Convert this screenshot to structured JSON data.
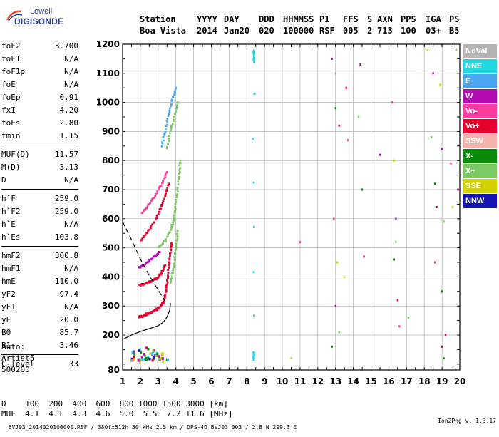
{
  "logo": {
    "line1": "Lowell",
    "line2": "DIGISONDE"
  },
  "header": {
    "labels": [
      "Station",
      "YYYY",
      "DAY",
      "DDD",
      "HHMMSS",
      "P1",
      "FFS",
      "S",
      "AXN",
      "PPS",
      "IGA",
      "PS"
    ],
    "values": [
      "Boa Vista",
      "2014",
      "Jan20",
      "020",
      "100000",
      "RSF",
      "005",
      "2",
      "713",
      "100",
      "03+",
      "B5"
    ]
  },
  "params_groups": [
    [
      {
        "label": "foF2",
        "value": "3.700"
      },
      {
        "label": "foF1",
        "value": "N/A"
      },
      {
        "label": "foF1p",
        "value": "N/A"
      },
      {
        "label": "foE",
        "value": "N/A"
      },
      {
        "label": "foEp",
        "value": "0.91"
      },
      {
        "label": "fxI",
        "value": "4.20"
      },
      {
        "label": "foEs",
        "value": "2.80"
      },
      {
        "label": "fmin",
        "value": "1.15"
      }
    ],
    [
      {
        "label": "MUF(D)",
        "value": "11.57"
      },
      {
        "label": "M(D)",
        "value": "3.13"
      },
      {
        "label": "D",
        "value": "N/A"
      }
    ],
    [
      {
        "label": "h`F",
        "value": "259.0"
      },
      {
        "label": "h`F2",
        "value": "259.0"
      },
      {
        "label": "h`E",
        "value": "N/A"
      },
      {
        "label": "h`Es",
        "value": "103.8"
      }
    ],
    [
      {
        "label": "hmF2",
        "value": "300.8"
      },
      {
        "label": "hmF1",
        "value": "N/A"
      },
      {
        "label": "hmE",
        "value": "110.0"
      },
      {
        "label": "yF2",
        "value": "97.4"
      },
      {
        "label": "yF1",
        "value": "N/A"
      },
      {
        "label": "yE",
        "value": "20.0"
      },
      {
        "label": "B0",
        "value": "85.7"
      },
      {
        "label": "B1",
        "value": "3.46"
      }
    ],
    [
      {
        "label": "C-level",
        "value": "33"
      }
    ]
  ],
  "auto": {
    "line1": "Auto:",
    "line2": "Artist5",
    "line3": "500200"
  },
  "dmuf": {
    "d_label": "D",
    "d_values": [
      "100",
      "200",
      "400",
      "600",
      "800",
      "1000",
      "1500",
      "3000"
    ],
    "d_unit": "[km]",
    "muf_label": "MUF",
    "muf_values": [
      "4.1",
      "4.1",
      "4.3",
      "4.6",
      "5.0",
      "5.5",
      "7.2",
      "11.6"
    ],
    "muf_unit": "[MHz]"
  },
  "footer": {
    "left": "BVJ03_2014020100000.RSF / 380fx512h 50 kHz 2.5 km / DPS-4D BVJ03 003 / 2.8 N 299.3 E",
    "right": "Ion2Png v. 1.3.17"
  },
  "legend": [
    {
      "label": "NoVal",
      "color": "#b4b4b4"
    },
    {
      "label": "NNE",
      "color": "#22d6e0"
    },
    {
      "label": "E",
      "color": "#4aa6f0"
    },
    {
      "label": "W",
      "color": "#b40ab4"
    },
    {
      "label": "Vo-",
      "color": "#ff3ca0"
    },
    {
      "label": "Vo+",
      "color": "#e6002d"
    },
    {
      "label": "SSW",
      "color": "#f5b4aa"
    },
    {
      "label": "X-",
      "color": "#0a8c0a"
    },
    {
      "label": "X+",
      "color": "#7cc864"
    },
    {
      "label": "SSE",
      "color": "#d2d200"
    },
    {
      "label": "NNW",
      "color": "#1414b4"
    }
  ],
  "chart_data": {
    "type": "scatter",
    "xlim": [
      1,
      20
    ],
    "ylim": [
      80,
      1200
    ],
    "x_ticks": [
      1,
      2,
      3,
      4,
      5,
      6,
      7,
      8,
      9,
      10,
      11,
      12,
      13,
      14,
      15,
      16,
      17,
      18,
      19,
      20
    ],
    "y_ticks": [
      80,
      200,
      300,
      400,
      500,
      600,
      700,
      800,
      900,
      1000,
      1100,
      1200
    ],
    "grid": true,
    "legend_position": "right",
    "profile_curve": [
      [
        1.0,
        185
      ],
      [
        1.5,
        200
      ],
      [
        2.0,
        212
      ],
      [
        2.5,
        222
      ],
      [
        3.0,
        232
      ],
      [
        3.3,
        245
      ],
      [
        3.5,
        262
      ],
      [
        3.65,
        285
      ],
      [
        3.7,
        310
      ]
    ],
    "dashed_curve": [
      [
        1.0,
        590
      ],
      [
        1.5,
        528
      ],
      [
        2.0,
        462
      ],
      [
        2.5,
        405
      ],
      [
        3.0,
        355
      ],
      [
        3.3,
        325
      ],
      [
        3.5,
        305
      ]
    ],
    "traces": [
      {
        "color": "#e6002d",
        "points": [
          [
            1.9,
            262
          ],
          [
            2.1,
            265
          ],
          [
            2.3,
            270
          ],
          [
            2.5,
            275
          ],
          [
            2.7,
            281
          ],
          [
            2.9,
            288
          ],
          [
            3.1,
            296
          ],
          [
            3.3,
            310
          ],
          [
            3.4,
            335
          ],
          [
            3.5,
            375
          ],
          [
            3.6,
            430
          ],
          [
            3.7,
            480
          ],
          [
            3.75,
            515
          ]
        ]
      },
      {
        "color": "#e6002d",
        "points": [
          [
            1.95,
            370
          ],
          [
            2.2,
            375
          ],
          [
            2.5,
            383
          ],
          [
            2.8,
            390
          ],
          [
            3.0,
            400
          ],
          [
            3.2,
            415
          ],
          [
            3.4,
            440
          ]
        ]
      },
      {
        "color": "#b40ab4",
        "points": [
          [
            1.9,
            430
          ],
          [
            2.2,
            440
          ],
          [
            2.5,
            455
          ],
          [
            2.8,
            470
          ],
          [
            3.1,
            485
          ]
        ]
      },
      {
        "color": "#e6002d",
        "points": [
          [
            2.0,
            525
          ],
          [
            2.4,
            555
          ],
          [
            2.8,
            590
          ],
          [
            3.1,
            630
          ],
          [
            3.4,
            675
          ],
          [
            3.6,
            720
          ]
        ]
      },
      {
        "color": "#ff3ca0",
        "points": [
          [
            2.1,
            620
          ],
          [
            2.5,
            650
          ],
          [
            2.9,
            685
          ],
          [
            3.2,
            720
          ],
          [
            3.5,
            760
          ]
        ]
      },
      {
        "color": "#7cc864",
        "points": [
          [
            3.7,
            380
          ],
          [
            3.85,
            420
          ],
          [
            3.95,
            470
          ],
          [
            4.05,
            520
          ],
          [
            4.1,
            560
          ]
        ]
      },
      {
        "color": "#7cc864",
        "points": [
          [
            3.0,
            500
          ],
          [
            3.4,
            525
          ],
          [
            3.7,
            560
          ],
          [
            3.9,
            600
          ],
          [
            4.0,
            650
          ],
          [
            4.1,
            700
          ],
          [
            4.2,
            760
          ],
          [
            4.25,
            800
          ]
        ]
      },
      {
        "color": "#4aa6f0",
        "points": [
          [
            3.2,
            850
          ],
          [
            3.4,
            900
          ],
          [
            3.6,
            960
          ],
          [
            3.8,
            1010
          ],
          [
            4.0,
            1050
          ]
        ]
      },
      {
        "color": "#7cc864",
        "points": [
          [
            3.5,
            840
          ],
          [
            3.7,
            900
          ],
          [
            3.9,
            950
          ],
          [
            4.1,
            1000
          ]
        ]
      },
      {
        "color": "#22d6e0",
        "points": [
          [
            8.4,
            1140
          ],
          [
            8.4,
            1160
          ],
          [
            8.4,
            1180
          ],
          [
            8.4,
            115
          ],
          [
            8.4,
            128
          ],
          [
            8.4,
            140
          ]
        ]
      }
    ],
    "es_layer": [
      [
        1.5,
        115
      ],
      [
        1.7,
        118
      ],
      [
        1.9,
        112
      ],
      [
        2.1,
        120
      ],
      [
        2.3,
        115
      ],
      [
        2.5,
        122
      ],
      [
        2.7,
        118
      ],
      [
        2.9,
        125
      ],
      [
        3.1,
        120
      ],
      [
        3.3,
        115
      ],
      [
        3.5,
        110
      ],
      [
        1.6,
        140
      ],
      [
        2.0,
        145
      ],
      [
        2.4,
        150
      ],
      [
        2.8,
        148
      ],
      [
        3.2,
        140
      ],
      [
        2.2,
        130
      ],
      [
        2.6,
        135
      ],
      [
        3.0,
        132
      ]
    ],
    "noise": [
      [
        12.8,
        1150
      ],
      [
        13.0,
        1100
      ],
      [
        13.0,
        980
      ],
      [
        13.2,
        920
      ],
      [
        12.9,
        600
      ],
      [
        13.1,
        450
      ],
      [
        13.0,
        300
      ],
      [
        13.2,
        210
      ],
      [
        12.8,
        160
      ],
      [
        13.6,
        1050
      ],
      [
        13.7,
        870
      ],
      [
        13.5,
        400
      ],
      [
        14.4,
        1130
      ],
      [
        14.3,
        950
      ],
      [
        14.5,
        700
      ],
      [
        14.6,
        470
      ],
      [
        16.2,
        1000
      ],
      [
        16.3,
        800
      ],
      [
        16.4,
        600
      ],
      [
        16.4,
        520
      ],
      [
        16.3,
        460
      ],
      [
        16.5,
        320
      ],
      [
        16.6,
        230
      ],
      [
        18.2,
        1180
      ],
      [
        18.5,
        1100
      ],
      [
        18.4,
        880
      ],
      [
        18.6,
        720
      ],
      [
        18.7,
        640
      ],
      [
        18.6,
        450
      ],
      [
        18.9,
        1060
      ],
      [
        19.0,
        840
      ],
      [
        19.1,
        590
      ],
      [
        19.0,
        350
      ],
      [
        19.2,
        200
      ],
      [
        19.5,
        790
      ],
      [
        19.6,
        640
      ],
      [
        19.9,
        700
      ],
      [
        19.8,
        1180
      ],
      [
        19.1,
        120
      ],
      [
        19.0,
        160
      ],
      [
        11.0,
        520
      ],
      [
        10.5,
        120
      ],
      [
        15.5,
        820
      ],
      [
        17.1,
        260
      ]
    ]
  }
}
